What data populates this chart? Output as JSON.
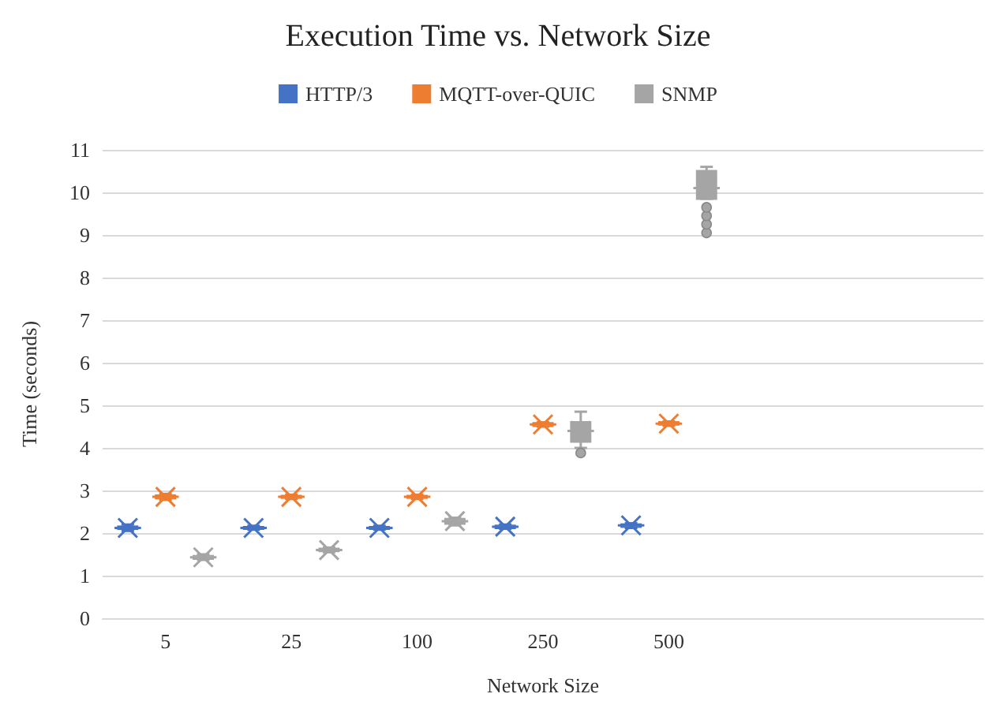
{
  "chart_data": {
    "type": "box",
    "title": "Execution Time vs. Network Size",
    "xlabel": "Network Size",
    "ylabel": "Time (seconds)",
    "categories": [
      "5",
      "25",
      "100",
      "250",
      "500",
      null,
      null
    ],
    "ylim": [
      0,
      11
    ],
    "yticks": [
      0,
      1,
      2,
      3,
      4,
      5,
      6,
      7,
      8,
      9,
      10,
      11
    ],
    "grid": "y",
    "legend": "top",
    "series": [
      {
        "name": "HTTP/3",
        "color": "#4472c4",
        "boxes": [
          {
            "low": 2.05,
            "q1": 2.1,
            "median": 2.12,
            "q3": 2.15,
            "high": 2.2,
            "mean": 2.12
          },
          {
            "low": 2.08,
            "q1": 2.1,
            "median": 2.12,
            "q3": 2.14,
            "high": 2.17,
            "mean": 2.12
          },
          {
            "low": 2.08,
            "q1": 2.1,
            "median": 2.12,
            "q3": 2.14,
            "high": 2.17,
            "mean": 2.12
          },
          {
            "low": 2.1,
            "q1": 2.12,
            "median": 2.15,
            "q3": 2.17,
            "high": 2.2,
            "mean": 2.15
          },
          {
            "low": 2.12,
            "q1": 2.15,
            "median": 2.18,
            "q3": 2.2,
            "high": 2.23,
            "mean": 2.18
          },
          null,
          null
        ]
      },
      {
        "name": "MQTT-over-QUIC",
        "color": "#ed7d31",
        "boxes": [
          {
            "low": 2.78,
            "q1": 2.82,
            "median": 2.85,
            "q3": 2.88,
            "high": 2.92,
            "mean": 2.85
          },
          {
            "low": 2.8,
            "q1": 2.83,
            "median": 2.85,
            "q3": 2.87,
            "high": 2.9,
            "mean": 2.85
          },
          {
            "low": 2.8,
            "q1": 2.83,
            "median": 2.85,
            "q3": 2.87,
            "high": 2.9,
            "mean": 2.85
          },
          {
            "low": 4.5,
            "q1": 4.52,
            "median": 4.55,
            "q3": 4.58,
            "high": 4.6,
            "mean": 4.55
          },
          {
            "low": 4.52,
            "q1": 4.55,
            "median": 4.57,
            "q3": 4.6,
            "high": 4.62,
            "mean": 4.57
          },
          null,
          null
        ]
      },
      {
        "name": "SNMP",
        "color": "#a5a5a5",
        "boxes": [
          {
            "low": 1.37,
            "q1": 1.4,
            "median": 1.43,
            "q3": 1.46,
            "high": 1.5,
            "mean": 1.43
          },
          {
            "low": 1.55,
            "q1": 1.58,
            "median": 1.6,
            "q3": 1.63,
            "high": 1.66,
            "mean": 1.6
          },
          {
            "low": 2.18,
            "q1": 2.22,
            "median": 2.28,
            "q3": 2.33,
            "high": 2.36,
            "mean": 2.28
          },
          {
            "low": 4.0,
            "q1": 4.15,
            "median": 4.4,
            "q3": 4.6,
            "high": 4.85,
            "mean": 4.4,
            "outliers": [
              3.88
            ]
          },
          {
            "low": 9.85,
            "q1": 9.85,
            "median": 10.1,
            "q3": 10.5,
            "high": 10.6,
            "mean": 10.1,
            "outliers": [
              9.05,
              9.25,
              9.45,
              9.65
            ]
          },
          null,
          null
        ]
      }
    ]
  }
}
